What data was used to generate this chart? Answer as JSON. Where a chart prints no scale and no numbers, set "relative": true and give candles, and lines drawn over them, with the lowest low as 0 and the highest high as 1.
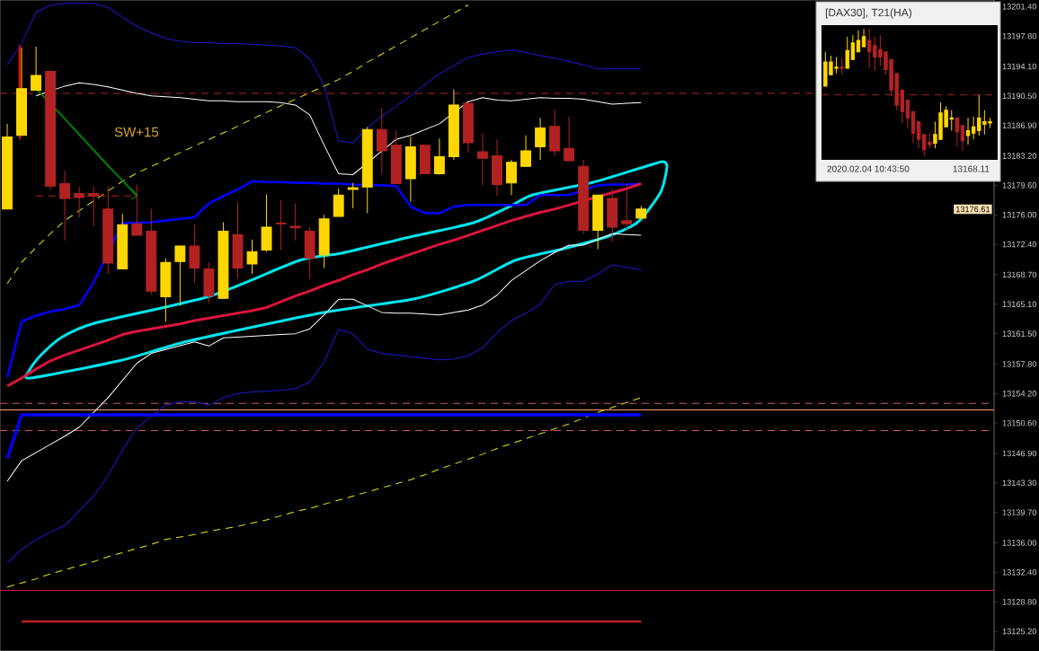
{
  "chart_data": [
    {
      "type": "candlestick",
      "categories": [
        null,
        null,
        null,
        null,
        null,
        null,
        null,
        null,
        null,
        null,
        null,
        null,
        null,
        null,
        null,
        null,
        null,
        null,
        null,
        null,
        null,
        null,
        null,
        null,
        null,
        null,
        null,
        null,
        null,
        null,
        null,
        null,
        null,
        null,
        null,
        null,
        null,
        null,
        null,
        null,
        null,
        null,
        null,
        null,
        null,
        null,
        null,
        null,
        null,
        null,
        null,
        null,
        null,
        null,
        null,
        null,
        null,
        null,
        null,
        null,
        null,
        null,
        null,
        null,
        null,
        null,
        null,
        null,
        null
      ],
      "ohlc": [
        [
          13176.7,
          13187.1,
          13176.7,
          13185.5
        ],
        [
          13185.7,
          13196.4,
          13185.7,
          13191.4
        ],
        [
          13191.2,
          13196.5,
          13191.2,
          13193.0
        ],
        [
          13193.5,
          13193.5,
          13179.0,
          13179.5
        ],
        [
          13179.8,
          13181.4,
          13172.9,
          13178.0
        ],
        [
          13178.6,
          13179.4,
          13175.7,
          13178.1
        ],
        [
          13178.6,
          13179.5,
          13174.6,
          13178.3
        ],
        [
          13176.7,
          13179.5,
          13168.8,
          13170.1
        ],
        [
          13169.4,
          13176.1,
          13169.4,
          13174.8
        ],
        [
          13174.9,
          13179.7,
          13173.5,
          13173.5
        ],
        [
          13174.0,
          13176.7,
          13166.3,
          13166.7
        ],
        [
          13166.0,
          13170.7,
          13163.0,
          13170.2
        ],
        [
          13170.3,
          13172.2,
          13164.9,
          13172.2
        ],
        [
          13172.2,
          13174.8,
          13167.7,
          13169.5
        ],
        [
          13169.4,
          13170.2,
          13165.2,
          13166.1
        ],
        [
          13165.8,
          13175.1,
          13165.8,
          13174.0
        ],
        [
          13173.6,
          13177.5,
          13168.2,
          13169.5
        ],
        [
          13170.0,
          13173.0,
          13168.8,
          13171.5
        ],
        [
          13171.7,
          13178.5,
          13171.5,
          13174.5
        ],
        [
          13175.0,
          13177.8,
          13171.7,
          13174.9
        ],
        [
          13174.6,
          13177.4,
          13172.9,
          13174.4
        ],
        [
          13174.0,
          13174.5,
          13168.2,
          13170.7
        ],
        [
          13171.1,
          13176.0,
          13169.5,
          13175.5
        ],
        [
          13175.8,
          13179.2,
          13175.8,
          13178.4
        ],
        [
          13179.1,
          13179.9,
          13176.8,
          13179.3
        ],
        [
          13179.4,
          13186.7,
          13176.2,
          13186.4
        ],
        [
          13186.4,
          13189.1,
          13181.0,
          13183.8
        ],
        [
          13184.5,
          13186.3,
          13179.8,
          13179.8
        ],
        [
          13180.4,
          13185.5,
          13177.6,
          13184.3
        ],
        [
          13184.5,
          13184.5,
          13181.0,
          13181.0
        ],
        [
          13181.0,
          13185.3,
          13180.9,
          13183.1
        ],
        [
          13183.1,
          13191.3,
          13182.7,
          13189.4
        ],
        [
          13189.6,
          13189.6,
          13183.6,
          13184.8
        ],
        [
          13183.7,
          13186.0,
          13179.6,
          13182.9
        ],
        [
          13183.2,
          13185.2,
          13178.3,
          13179.7
        ],
        [
          13179.9,
          13182.7,
          13178.4,
          13182.4
        ],
        [
          13181.9,
          13185.7,
          13181.9,
          13183.8
        ],
        [
          13184.3,
          13187.8,
          13182.7,
          13186.6
        ],
        [
          13186.8,
          13188.8,
          13183.2,
          13183.8
        ],
        [
          13184.1,
          13188.0,
          13182.6,
          13182.6
        ],
        [
          13181.9,
          13182.7,
          13173.7,
          13174.1
        ],
        [
          13174.1,
          13178.4,
          13171.8,
          13178.4
        ],
        [
          13178.0,
          13179.2,
          13172.7,
          13174.5
        ],
        [
          13175.3,
          13179.9,
          13174.2,
          13174.9
        ],
        [
          13175.6,
          13177.1,
          13175.6,
          13176.7
        ],
        null,
        null,
        null,
        null,
        null,
        null,
        null,
        null,
        null,
        null,
        null,
        null,
        null,
        null,
        null,
        null,
        null,
        null,
        null,
        null,
        null,
        null,
        null,
        null
      ],
      "colors": [
        "#ffd700",
        "#ffd700",
        "#ffd700",
        "#b22222",
        "#b22222",
        "#b22222",
        "#b22222",
        "#b22222",
        "#ffd700",
        "#b22222",
        "#b22222",
        "#ffd700",
        "#ffd700",
        "#b22222",
        "#b22222",
        "#ffd700",
        "#b22222",
        "#ffd700",
        "#ffd700",
        "#b22222",
        "#b22222",
        "#b22222",
        "#ffd700",
        "#ffd700",
        "#ffd700",
        "#ffd700",
        "#b22222",
        "#b22222",
        "#ffd700",
        "#b22222",
        "#ffd700",
        "#ffd700",
        "#b22222",
        "#b22222",
        "#b22222",
        "#ffd700",
        "#ffd700",
        "#ffd700",
        "#b22222",
        "#b22222",
        "#b22222",
        "#ffd700",
        "#b22222",
        "#b22222",
        "#ffd700",
        null,
        null,
        null,
        null,
        null,
        null,
        null,
        null,
        null,
        null,
        null,
        null,
        null,
        null,
        null,
        null,
        null,
        null,
        null,
        null,
        null,
        null,
        null,
        null
      ],
      "series": [
        {
          "type": "line",
          "color": "#1a1acd",
          "line_style": "solid",
          "values": [
            13194.3,
            13196.9,
            13200.7,
            13201.6,
            13201.8,
            13201.8,
            13201.8,
            13201.3,
            13200.1,
            13199.0,
            13198.2,
            13197.5,
            13197.2,
            13197.0,
            13197.0,
            13196.9,
            13196.9,
            13196.8,
            13196.7,
            13196.6,
            13196.4,
            13195.0,
            13191.8,
            13185.0,
            13184.8,
            13186.6,
            13188.0,
            13189.3,
            13190.5,
            13191.9,
            13193.2,
            13194.2,
            13195.2,
            13195.6,
            13195.9,
            13196.1,
            13195.8,
            13195.4,
            13195.1,
            13194.7,
            13194.3,
            13193.8,
            13193.8,
            13193.8,
            13193.8,
            null,
            null,
            null,
            null,
            null,
            null,
            null,
            null,
            null,
            null,
            null,
            null,
            null,
            null,
            null,
            null,
            null,
            null,
            null,
            null,
            null,
            null,
            null,
            null
          ]
        },
        {
          "type": "line",
          "color": "#1a1acd",
          "line_style": "solid",
          "values": [
            13133.5,
            13135.2,
            13136.4,
            13137.3,
            13138.1,
            13139.9,
            13141.7,
            13144.2,
            13147.3,
            13150.0,
            13151.4,
            13152.8,
            13153.2,
            13153.2,
            13152.8,
            13153.7,
            13154.2,
            13154.4,
            13154.5,
            13154.6,
            13154.8,
            13155.6,
            13158.1,
            13162.0,
            13161.5,
            13159.6,
            13159.1,
            13158.9,
            13158.7,
            13158.5,
            13158.3,
            13158.4,
            13158.8,
            13159.8,
            13161.6,
            13163.1,
            13164.0,
            13165.1,
            13167.5,
            13167.9,
            13167.9,
            13168.8,
            13169.9,
            13169.6,
            13169.3,
            null,
            null,
            null,
            null,
            null,
            null,
            null,
            null,
            null,
            null,
            null,
            null,
            null,
            null,
            null,
            null,
            null,
            null,
            null,
            null,
            null,
            null,
            null,
            null
          ]
        },
        {
          "type": "line",
          "color": "#ffffff",
          "line_style": "solid",
          "values": [
            null,
            null,
            13190.5,
            null,
            13191.7,
            13192.1,
            13191.9,
            13191.6,
            13191.2,
            13190.8,
            13190.5,
            13190.4,
            13190.3,
            13190.1,
            13189.9,
            13189.9,
            13189.8,
            13189.8,
            13189.8,
            13189.7,
            13189.4,
            13188.2,
            13184.5,
            13181.0,
            13180.9,
            null,
            null,
            13185.2,
            13185.7,
            13186.4,
            13187.1,
            null,
            13189.8,
            13190.3,
            13190.0,
            13189.9,
            13190.1,
            13190.3,
            13190.2,
            13190.2,
            13190.1,
            13189.8,
            13189.5,
            13189.6,
            13189.7,
            null,
            null,
            null,
            null,
            null,
            null,
            null,
            null,
            null,
            null,
            null,
            null,
            null,
            null,
            null,
            null,
            null,
            null,
            null,
            null,
            null,
            null,
            null,
            null
          ]
        },
        {
          "type": "line",
          "color": "#ffffff",
          "line_style": "solid",
          "values": [
            13143.5,
            13146.0,
            13147.0,
            13148.0,
            13149.0,
            13150.1,
            13151.9,
            13153.7,
            13155.8,
            13157.9,
            13159.1,
            null,
            null,
            13160.5,
            13160.0,
            13161.0,
            13161.1,
            13161.2,
            13161.3,
            13161.4,
            13161.5,
            13162.1,
            13163.8,
            13165.7,
            13165.7,
            13164.9,
            13164.1,
            13164.0,
            13164.0,
            13163.9,
            13163.8,
            13164.1,
            13164.4,
            13165.0,
            13166.2,
            13168.0,
            13169.2,
            13170.4,
            13171.4,
            13172.3,
            13172.3,
            13173.0,
            13173.7,
            13173.6,
            13173.5,
            null,
            null,
            null,
            null,
            null,
            null,
            null,
            null,
            null,
            null,
            null,
            null,
            null,
            null,
            null,
            null,
            null,
            null,
            null,
            null,
            null,
            null,
            null,
            null
          ]
        },
        {
          "type": "line",
          "color": "#0000ff",
          "line_style": "solid",
          "values": [
            13156.2,
            13163.0,
            13163.7,
            13164.2,
            13164.5,
            13165.0,
            13167.8,
            null,
            13175.0,
            13175.0,
            13175.1,
            13175.3,
            13175.5,
            13175.7,
            13177.4,
            13178.3,
            13179.1,
            13180.1,
            13180.0,
            13180.0,
            13179.9,
            13179.9,
            13179.8,
            13179.8,
            13179.7,
            null,
            13179.6,
            13179.5,
            13177.0,
            13176.2,
            13176.2,
            13177.0,
            13177.2,
            13177.2,
            13177.2,
            13177.2,
            13177.2,
            13178.4,
            13178.4,
            13178.4,
            null,
            13179.6,
            13179.7,
            13179.7,
            13179.8,
            null,
            null,
            null,
            null,
            null,
            null,
            null,
            null,
            null,
            null,
            null,
            null,
            null,
            null,
            null,
            null,
            null,
            null,
            null,
            null,
            null,
            null,
            null,
            null
          ]
        },
        {
          "type": "line",
          "color": "#dc143c",
          "line_style": "solid",
          "values": [
            13155.1,
            13156.1,
            13157.2,
            13158.2,
            13158.9,
            13159.5,
            13160.1,
            13160.7,
            13161.4,
            13161.8,
            13162.1,
            13162.4,
            13162.7,
            13163.1,
            13163.4,
            13163.7,
            13164.0,
            13164.3,
            13164.7,
            13165.4,
            13166.1,
            13166.7,
            13167.4,
            13168.0,
            13168.7,
            13169.3,
            13170.0,
            13170.6,
            13171.2,
            13171.8,
            13172.4,
            13172.9,
            13173.5,
            13174.1,
            13174.7,
            13175.3,
            13175.8,
            13176.3,
            13176.7,
            13177.2,
            null,
            null,
            13178.7,
            13179.2,
            13179.8,
            null,
            null,
            null,
            null,
            null,
            null,
            null,
            null,
            null,
            null,
            null,
            null,
            null,
            null,
            null,
            null,
            null,
            null,
            null,
            null,
            null,
            null,
            null,
            null
          ]
        },
        {
          "type": "line",
          "color": "#e6e600",
          "line_style": "dashed",
          "values": [
            13167.6,
            13170.2,
            13172.0,
            13173.7,
            13175.3,
            13176.5,
            13177.7,
            13178.9,
            13180.1,
            13181.1,
            13181.9,
            13182.7,
            13183.6,
            13184.4,
            13185.2,
            13186.0,
            13186.8,
            13187.7,
            13188.5,
            13189.3,
            13190.1,
            13190.9,
            13191.7,
            13192.5,
            13193.5,
            13194.6,
            13195.6,
            13196.6,
            13197.6,
            13198.6,
            13199.6,
            13200.6,
            13201.6,
            null,
            null,
            null,
            null,
            null,
            null,
            null,
            null,
            null,
            null,
            null,
            null,
            null,
            null,
            null,
            null,
            null,
            null,
            null,
            null,
            null,
            null,
            null,
            null,
            null,
            null,
            null,
            null,
            null,
            null,
            null,
            null,
            null,
            null,
            null,
            null
          ]
        },
        {
          "type": "line",
          "color": "#e6e600",
          "line_style": "dashed",
          "values": [
            13130.6,
            13131.1,
            13131.6,
            13132.2,
            13132.7,
            13133.2,
            13133.7,
            13134.3,
            13134.8,
            13135.3,
            13135.8,
            13136.4,
            13136.7,
            13137.0,
            13137.4,
            13137.7,
            13138.0,
            13138.4,
            13138.8,
            13139.3,
            13139.8,
            13140.2,
            13140.7,
            13141.2,
            13141.7,
            13142.2,
            13142.7,
            13143.2,
            13143.7,
            13144.3,
            13145.0,
            13145.6,
            13146.2,
            13146.8,
            13147.5,
            13148.1,
            13148.7,
            13149.3,
            13149.9,
            13150.5,
            13151.2,
            13151.9,
            13152.5,
            13153.1,
            13153.7,
            null,
            null,
            null,
            null,
            null,
            null,
            null,
            null,
            null,
            null,
            null,
            null,
            null,
            null,
            null,
            null,
            null,
            null,
            null,
            null,
            null,
            null,
            null,
            null
          ]
        },
        {
          "type": "line",
          "color": "#0000ff",
          "line_style": "solid",
          "values": [
            13146.3,
            13151.6,
            13151.6,
            13151.6,
            13151.6,
            13151.6,
            13151.6,
            13151.6,
            13151.6,
            13151.6,
            13151.6,
            13151.6,
            13151.6,
            13151.6,
            13151.6,
            13151.6,
            13151.6,
            13151.6,
            13151.6,
            13151.6,
            13151.6,
            13151.6,
            13151.6,
            13151.6,
            13151.6,
            13151.6,
            13151.6,
            13151.6,
            13151.6,
            13151.6,
            13151.6,
            13151.6,
            13151.6,
            13151.6,
            13151.6,
            13151.6,
            13151.6,
            13151.6,
            13151.6,
            13151.6,
            13151.6,
            13151.6,
            13151.6,
            13151.6,
            13151.6,
            null,
            null,
            null,
            null,
            null,
            null,
            null,
            null,
            null,
            null,
            null,
            null,
            null,
            null,
            null,
            null,
            null,
            null,
            null,
            null,
            null,
            null,
            null,
            null
          ]
        },
        {
          "type": "line",
          "color": "#b22222",
          "line_style": "solid",
          "values": [
            null,
            13126.4,
            13126.4,
            13126.4,
            13126.4,
            13126.4,
            13126.4,
            13126.4,
            13126.4,
            13126.4,
            13126.4,
            13126.4,
            13126.4,
            13126.4,
            13126.4,
            13126.4,
            13126.4,
            13126.4,
            13126.4,
            13126.4,
            13126.4,
            13126.4,
            13126.4,
            13126.4,
            13126.4,
            13126.4,
            13126.4,
            13126.4,
            13126.4,
            13126.4,
            13126.4,
            13126.4,
            13126.4,
            13126.4,
            13126.4,
            13126.4,
            13126.4,
            13126.4,
            13126.4,
            13126.4,
            13126.4,
            13126.4,
            13126.4,
            13126.4,
            13126.4,
            null,
            null,
            null,
            null,
            null,
            null,
            null,
            null,
            null,
            null,
            null,
            null,
            null,
            null,
            null,
            null,
            null,
            null,
            null,
            null,
            null,
            null,
            null,
            null
          ]
        },
        {
          "type": "line",
          "color": "#008000",
          "line_style": "solid",
          "values": [
            null,
            null,
            13191.4,
            null,
            13187.7,
            13185.8,
            13183.9,
            13182.0,
            13180.2,
            13178.3,
            null,
            null,
            null,
            null,
            null,
            null,
            null,
            null,
            null,
            null,
            null,
            null,
            null,
            null,
            null,
            null,
            null,
            null,
            null,
            null,
            null,
            null,
            null,
            null,
            null,
            null,
            null,
            null,
            null,
            null,
            null,
            null,
            null,
            null,
            null,
            null,
            null,
            null,
            null,
            null,
            null,
            null,
            null,
            null,
            null,
            null,
            null,
            null,
            null,
            null,
            null,
            null,
            null,
            null,
            null,
            null,
            null,
            null,
            null
          ]
        },
        {
          "type": "line",
          "color": "#b22222",
          "line_style": "dashed",
          "values": [
            null,
            null,
            13178.3,
            13178.3,
            13178.3,
            13178.3,
            13178.3,
            13178.3,
            13178.3,
            13178.3,
            null,
            null,
            null,
            null,
            null,
            null,
            null,
            null,
            null,
            null,
            null,
            null,
            null,
            null,
            null,
            null,
            null,
            null,
            null,
            null,
            null,
            null,
            null,
            null,
            null,
            null,
            null,
            null,
            null,
            null,
            null,
            null,
            null,
            null,
            null,
            null,
            null,
            null,
            null,
            null,
            null,
            null,
            null,
            null,
            null,
            null,
            null,
            null,
            null,
            null,
            null,
            null,
            null,
            null,
            null,
            null,
            null,
            null,
            null
          ]
        }
      ],
      "ref_lines": [
        {
          "axis": "y",
          "value": 13190.8,
          "color": "#b22222",
          "line_style": "dashed"
        },
        {
          "axis": "y",
          "value": 13153.0,
          "color": "#cd5c5c",
          "line_style": "dashed"
        },
        {
          "axis": "y",
          "value": 13152.2,
          "color": "#ffa07a",
          "line_style": "solid"
        },
        {
          "axis": "y",
          "value": 13149.7,
          "color": "#cd5c5c",
          "line_style": "dashed"
        },
        {
          "axis": "y",
          "value": 13130.2,
          "color": "#dc143c",
          "line_style": "solid"
        }
      ],
      "annotations": [
        "SW+15",
        "13176.61"
      ],
      "ylim": [
        13122.8,
        13202.2
      ],
      "yticks": [
        {
          "value": 13201.4,
          "label": "13201.40"
        },
        {
          "value": 13197.8,
          "label": "13197.80"
        },
        {
          "value": 13194.1,
          "label": "13194.10"
        },
        {
          "value": 13190.5,
          "label": "13190.50"
        },
        {
          "value": 13186.9,
          "label": "13186.90"
        },
        {
          "value": 13183.2,
          "label": "13183.20"
        },
        {
          "value": 13179.6,
          "label": "13179.60"
        },
        {
          "value": 13176.0,
          "label": "13176.00"
        },
        {
          "value": 13172.4,
          "label": "13172.40"
        },
        {
          "value": 13168.7,
          "label": "13168.70"
        },
        {
          "value": 13165.1,
          "label": "13165.10"
        },
        {
          "value": 13161.5,
          "label": "13161.50"
        },
        {
          "value": 13157.8,
          "label": "13157.80"
        },
        {
          "value": 13154.2,
          "label": "13154.20"
        },
        {
          "value": 13150.6,
          "label": "13150.60"
        },
        {
          "value": 13146.9,
          "label": "13146.90"
        },
        {
          "value": 13143.3,
          "label": "13143.30"
        },
        {
          "value": 13139.7,
          "label": "13139.70"
        },
        {
          "value": 13136.0,
          "label": "13136.00"
        },
        {
          "value": 13132.4,
          "label": "13132.40"
        },
        {
          "value": 13128.8,
          "label": "13128.80"
        },
        {
          "value": 13125.2,
          "label": "13125.20"
        }
      ],
      "tick_labels": "y"
    },
    {
      "type": "candlestick",
      "title": "[DAX30], T21(HA)",
      "relative": true,
      "categories": [
        null,
        null,
        null,
        null,
        null,
        null,
        null,
        null,
        null,
        null,
        null,
        null,
        null,
        null,
        null,
        null,
        null,
        null,
        null,
        null,
        null,
        null,
        null,
        null,
        null,
        null,
        null,
        null,
        null,
        null,
        null
      ],
      "ohlc": [
        [
          0.55,
          0.82,
          0.55,
          0.74
        ],
        [
          0.64,
          0.79,
          0.64,
          0.74
        ],
        [
          0.69,
          0.78,
          0.65,
          0.7
        ],
        [
          0.7,
          0.77,
          0.64,
          0.69
        ],
        [
          0.69,
          0.94,
          0.69,
          0.83
        ],
        [
          0.76,
          0.95,
          0.76,
          0.89
        ],
        [
          0.82,
          0.99,
          0.82,
          0.91
        ],
        [
          0.86,
          1.0,
          0.86,
          0.94
        ],
        [
          0.91,
          1.0,
          0.69,
          0.82
        ],
        [
          0.87,
          0.94,
          0.67,
          0.78
        ],
        [
          0.84,
          0.95,
          0.71,
          0.78
        ],
        [
          0.82,
          0.82,
          0.64,
          0.68
        ],
        [
          0.76,
          0.76,
          0.47,
          0.52
        ],
        [
          0.65,
          0.65,
          0.36,
          0.4
        ],
        [
          0.52,
          0.52,
          0.26,
          0.35
        ],
        [
          0.44,
          0.44,
          0.22,
          0.3
        ],
        [
          0.35,
          0.35,
          0.1,
          0.18
        ],
        [
          0.27,
          0.27,
          0.06,
          0.13
        ],
        [
          0.17,
          0.17,
          0,
          0.05
        ],
        [
          0.11,
          0.18,
          0.06,
          0.09
        ],
        [
          0.1,
          0.27,
          0.06,
          0.17
        ],
        [
          0.13,
          0.42,
          0.13,
          0.34
        ],
        [
          0.23,
          0.39,
          0.23,
          0.36
        ],
        [
          0.29,
          0.36,
          0.2,
          0.3
        ],
        [
          0.3,
          0.3,
          0.07,
          0.19
        ],
        [
          0.24,
          0.24,
          0.04,
          0.12
        ],
        [
          0.16,
          0.3,
          0.09,
          0.2
        ],
        [
          0.18,
          0.31,
          0.13,
          0.23
        ],
        [
          0.2,
          0.48,
          0.16,
          0.3
        ],
        [
          0.25,
          0.36,
          0.17,
          0.27
        ],
        [
          0.26,
          0.3,
          0.22,
          0.27
        ]
      ],
      "colors": [
        "#ffd700",
        "#ffd700",
        "#ffd700",
        "#b22222",
        "#ffd700",
        "#ffd700",
        "#ffd700",
        "#ffd700",
        "#b22222",
        "#b22222",
        "#b22222",
        "#b22222",
        "#b22222",
        "#b22222",
        "#b22222",
        "#b22222",
        "#b22222",
        "#b22222",
        "#b22222",
        "#b22222",
        "#ffd700",
        "#ffd700",
        "#ffd700",
        "#ffd700",
        "#b22222",
        "#b22222",
        "#ffd700",
        "#ffd700",
        "#ffd700",
        "#ffd700",
        "#ffd700"
      ],
      "ref_lines": [
        {
          "axis": "y",
          "value": 0.48,
          "color": "#b22222",
          "line_style": "dashed"
        }
      ],
      "annotations": [
        "2020.02.04 10:43:50",
        "13168.11"
      ]
    }
  ]
}
